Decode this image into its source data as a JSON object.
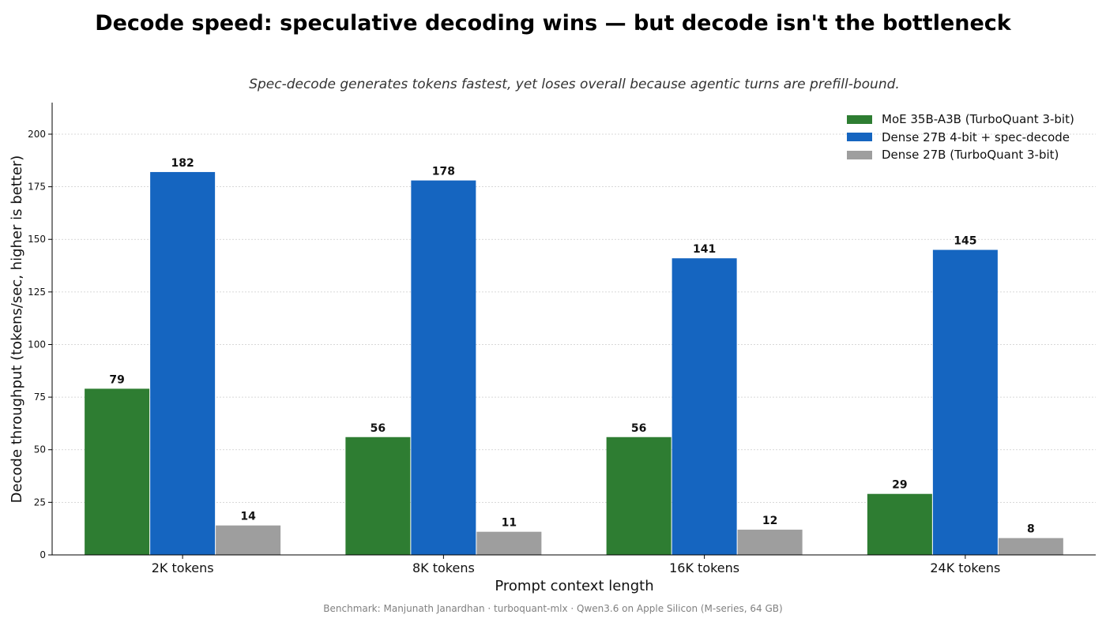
{
  "title": "Decode speed: speculative decoding wins — but decode isn't the bottleneck",
  "subtitle": "Spec-decode generates tokens fastest, yet loses overall because agentic turns are prefill-bound.",
  "footer": "Benchmark: Manjunath Janardhan · turboquant-mlx · Qwen3.6 on Apple Silicon (M-series, 64 GB)",
  "chart_data": {
    "type": "bar",
    "categories": [
      "2K tokens",
      "8K tokens",
      "16K tokens",
      "24K tokens"
    ],
    "series": [
      {
        "name": "MoE 35B-A3B (TurboQuant 3-bit)",
        "values": [
          79,
          56,
          56,
          29
        ],
        "color": "#2e7d32",
        "labels": [
          "79",
          "56",
          "56",
          "29"
        ]
      },
      {
        "name": "Dense 27B 4-bit + spec-decode",
        "values": [
          182,
          178,
          141,
          145
        ],
        "color": "#1565c0",
        "labels": [
          "182",
          "178",
          "141",
          "145"
        ]
      },
      {
        "name": "Dense 27B (TurboQuant 3-bit)",
        "values": [
          14,
          11,
          12,
          8
        ],
        "color": "#9e9e9e",
        "labels": [
          "14",
          "11",
          "12",
          "8"
        ]
      }
    ],
    "xlabel": "Prompt context length",
    "ylabel": "Decode throughput (tokens/sec, higher is better)",
    "ylim": [
      0,
      215
    ],
    "yticks": [
      0,
      25,
      50,
      75,
      100,
      125,
      150,
      175,
      200
    ],
    "ytick_labels": [
      "0",
      "25",
      "50",
      "75",
      "100",
      "125",
      "150",
      "175",
      "200"
    ],
    "grid": "y-dotted",
    "legend_position": "top-right"
  }
}
